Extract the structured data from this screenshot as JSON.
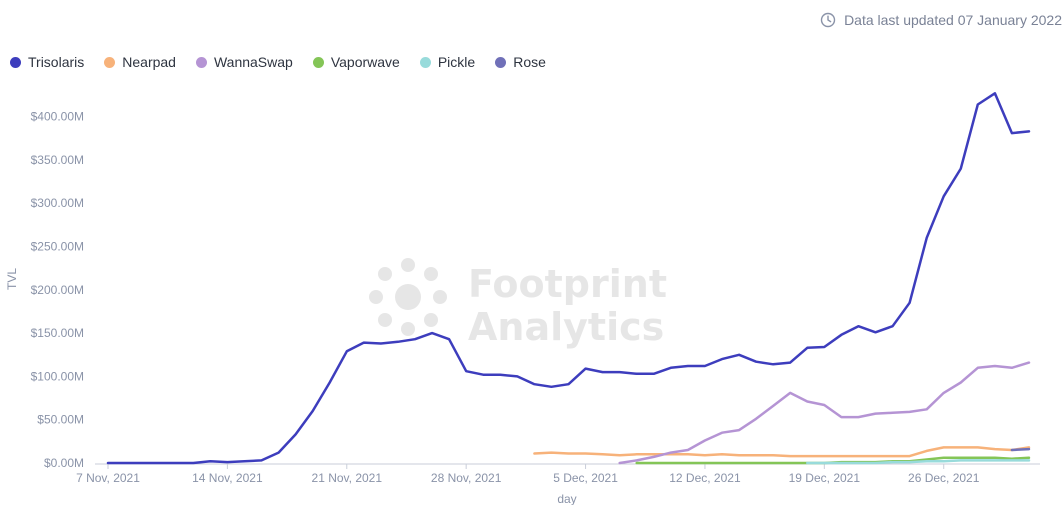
{
  "header": {
    "updated_text": "Data last updated 07 January 2022"
  },
  "watermark": {
    "line1": "Footprint",
    "line2": "Analytics"
  },
  "chart_data": {
    "type": "line",
    "xlabel": "day",
    "ylabel": "TVL",
    "ylim": [
      0,
      425
    ],
    "y_ticks": [
      "$0.00M",
      "$50.00M",
      "$100.00M",
      "$150.00M",
      "$200.00M",
      "$250.00M",
      "$300.00M",
      "$350.00M",
      "$400.00M"
    ],
    "x_ticks": [
      "7 Nov, 2021",
      "14 Nov, 2021",
      "21 Nov, 2021",
      "28 Nov, 2021",
      "5 Dec, 2021",
      "12 Dec, 2021",
      "19 Dec, 2021",
      "26 Dec, 2021"
    ],
    "x_tick_days": [
      0,
      7,
      14,
      21,
      28,
      35,
      42,
      49
    ],
    "x_max_day": 53,
    "series": [
      {
        "name": "Trisolaris",
        "color": "#3d3dbd",
        "points": [
          [
            0,
            0
          ],
          [
            1,
            0
          ],
          [
            2,
            0
          ],
          [
            3,
            0
          ],
          [
            4,
            0
          ],
          [
            5,
            0
          ],
          [
            6,
            2
          ],
          [
            7,
            1
          ],
          [
            8,
            2
          ],
          [
            9,
            3
          ],
          [
            10,
            12
          ],
          [
            11,
            33
          ],
          [
            12,
            60
          ],
          [
            13,
            93
          ],
          [
            14,
            129
          ],
          [
            15,
            139
          ],
          [
            16,
            138
          ],
          [
            17,
            140
          ],
          [
            18,
            143
          ],
          [
            19,
            150
          ],
          [
            20,
            143
          ],
          [
            21,
            106
          ],
          [
            22,
            102
          ],
          [
            23,
            102
          ],
          [
            24,
            100
          ],
          [
            25,
            91
          ],
          [
            26,
            88
          ],
          [
            27,
            91
          ],
          [
            28,
            109
          ],
          [
            29,
            105
          ],
          [
            30,
            105
          ],
          [
            31,
            103
          ],
          [
            32,
            103
          ],
          [
            33,
            110
          ],
          [
            34,
            112
          ],
          [
            35,
            112
          ],
          [
            36,
            120
          ],
          [
            37,
            125
          ],
          [
            38,
            117
          ],
          [
            39,
            114
          ],
          [
            40,
            116
          ],
          [
            41,
            133
          ],
          [
            42,
            134
          ],
          [
            43,
            148
          ],
          [
            44,
            158
          ],
          [
            45,
            151
          ],
          [
            46,
            158
          ],
          [
            47,
            185
          ],
          [
            48,
            260
          ],
          [
            49,
            308
          ],
          [
            50,
            340
          ],
          [
            51,
            414
          ],
          [
            52,
            427
          ],
          [
            53,
            381
          ],
          [
            54,
            383
          ]
        ]
      },
      {
        "name": "Nearpad",
        "color": "#f7b27a",
        "points": [
          [
            25,
            11
          ],
          [
            26,
            12
          ],
          [
            27,
            11
          ],
          [
            28,
            11
          ],
          [
            29,
            10
          ],
          [
            30,
            9
          ],
          [
            31,
            10
          ],
          [
            32,
            10
          ],
          [
            33,
            10
          ],
          [
            34,
            10
          ],
          [
            35,
            9
          ],
          [
            36,
            10
          ],
          [
            37,
            9
          ],
          [
            38,
            9
          ],
          [
            39,
            9
          ],
          [
            40,
            8
          ],
          [
            41,
            8
          ],
          [
            42,
            8
          ],
          [
            43,
            8
          ],
          [
            44,
            8
          ],
          [
            45,
            8
          ],
          [
            46,
            8
          ],
          [
            47,
            8
          ],
          [
            48,
            14
          ],
          [
            49,
            18
          ],
          [
            50,
            18
          ],
          [
            51,
            18
          ],
          [
            52,
            16
          ],
          [
            53,
            15
          ],
          [
            54,
            18
          ]
        ]
      },
      {
        "name": "WannaSwap",
        "color": "#b594d4",
        "points": [
          [
            30,
            0
          ],
          [
            31,
            3
          ],
          [
            32,
            7
          ],
          [
            33,
            12
          ],
          [
            34,
            15
          ],
          [
            35,
            26
          ],
          [
            36,
            35
          ],
          [
            37,
            38
          ],
          [
            38,
            51
          ],
          [
            39,
            66
          ],
          [
            40,
            81
          ],
          [
            41,
            71
          ],
          [
            42,
            67
          ],
          [
            43,
            53
          ],
          [
            44,
            53
          ],
          [
            45,
            57
          ],
          [
            46,
            58
          ],
          [
            47,
            59
          ],
          [
            48,
            62
          ],
          [
            49,
            81
          ],
          [
            50,
            93
          ],
          [
            51,
            110
          ],
          [
            52,
            112
          ],
          [
            53,
            110
          ],
          [
            54,
            116
          ]
        ]
      },
      {
        "name": "Vaporwave",
        "color": "#84c557",
        "points": [
          [
            31,
            0
          ],
          [
            33,
            0
          ],
          [
            35,
            0
          ],
          [
            37,
            0
          ],
          [
            39,
            0
          ],
          [
            41,
            0
          ],
          [
            42,
            0
          ],
          [
            43,
            1
          ],
          [
            44,
            1
          ],
          [
            45,
            1
          ],
          [
            46,
            2
          ],
          [
            47,
            2
          ],
          [
            48,
            4
          ],
          [
            49,
            6
          ],
          [
            50,
            6
          ],
          [
            51,
            6
          ],
          [
            52,
            6
          ],
          [
            53,
            5
          ],
          [
            54,
            6
          ]
        ]
      },
      {
        "name": "Pickle",
        "color": "#98dbdb",
        "points": [
          [
            41,
            0
          ],
          [
            43,
            0
          ],
          [
            45,
            0
          ],
          [
            46,
            1
          ],
          [
            47,
            1
          ],
          [
            48,
            2
          ],
          [
            49,
            2
          ],
          [
            50,
            3
          ],
          [
            51,
            3
          ],
          [
            52,
            3
          ],
          [
            53,
            3
          ],
          [
            54,
            3
          ]
        ]
      },
      {
        "name": "Rose",
        "color": "#7070b8",
        "points": [
          [
            53,
            15
          ],
          [
            54,
            16
          ]
        ]
      }
    ]
  }
}
